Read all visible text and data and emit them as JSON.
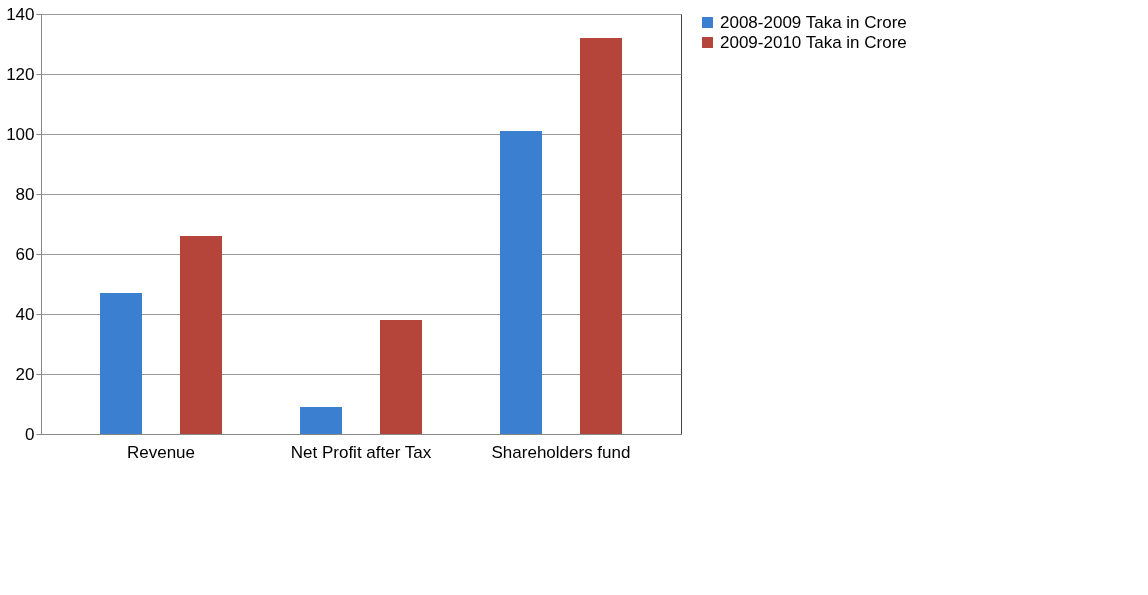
{
  "chart_data": {
    "type": "bar",
    "categories": [
      "Revenue",
      "Net Profit after Tax",
      "Shareholders fund"
    ],
    "series": [
      {
        "name": "2008-2009 Taka in Crore",
        "color": "#3a7fd0",
        "values": [
          47,
          9,
          101
        ]
      },
      {
        "name": "2009-2010 Taka in Crore",
        "color": "#b5443a",
        "values": [
          66,
          38,
          132
        ]
      }
    ],
    "ylim": [
      0,
      140
    ],
    "yticks": [
      0,
      20,
      40,
      60,
      80,
      100,
      120,
      140
    ],
    "grid": "y",
    "legend": "right"
  }
}
